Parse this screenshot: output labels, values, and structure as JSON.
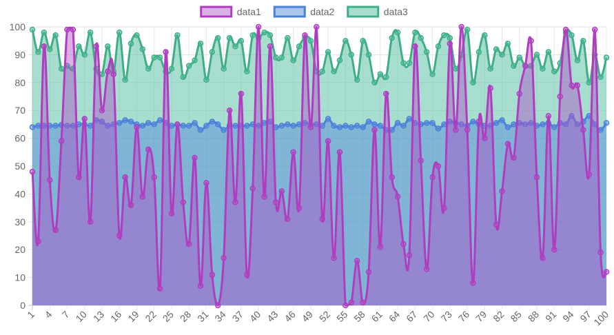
{
  "chart_data": {
    "type": "area",
    "xlabel": "",
    "ylabel": "",
    "ylim": [
      0,
      100
    ],
    "y_ticks": [
      0,
      10,
      20,
      30,
      40,
      50,
      60,
      70,
      80,
      90,
      100
    ],
    "x": [
      1,
      2,
      3,
      4,
      5,
      6,
      7,
      8,
      9,
      10,
      11,
      12,
      13,
      14,
      15,
      16,
      17,
      18,
      19,
      20,
      21,
      22,
      23,
      24,
      25,
      26,
      27,
      28,
      29,
      30,
      31,
      32,
      33,
      34,
      35,
      36,
      37,
      38,
      39,
      40,
      41,
      42,
      43,
      44,
      45,
      46,
      47,
      48,
      49,
      50,
      51,
      52,
      53,
      54,
      55,
      56,
      57,
      58,
      59,
      60,
      61,
      62,
      63,
      64,
      65,
      66,
      67,
      68,
      69,
      70,
      71,
      72,
      73,
      74,
      75,
      76,
      77,
      78,
      79,
      80,
      81,
      82,
      83,
      84,
      85,
      86,
      87,
      88,
      89,
      90,
      91,
      92,
      93,
      94,
      95,
      96,
      97,
      98,
      99,
      100
    ],
    "x_tick_labels": [
      "1",
      "4",
      "7",
      "10",
      "13",
      "16",
      "19",
      "22",
      "25",
      "28",
      "31",
      "34",
      "37",
      "40",
      "43",
      "46",
      "49",
      "52",
      "55",
      "58",
      "61",
      "64",
      "67",
      "70",
      "73",
      "76",
      "79",
      "82",
      "85",
      "88",
      "91",
      "94",
      "97",
      "100"
    ],
    "grid": true,
    "legend_position": "top",
    "series": [
      {
        "name": "data1",
        "line_color": "#b03cc0",
        "fill_color": "rgba(176,80,200,0.45)",
        "values": [
          48,
          23,
          93,
          45,
          27,
          59,
          99,
          99,
          46,
          67,
          30,
          93,
          70,
          84,
          83,
          25,
          46,
          36,
          64,
          39,
          56,
          46,
          6,
          91,
          33,
          65,
          37,
          22,
          53,
          7,
          44,
          11,
          0,
          17,
          70,
          37,
          76,
          11,
          42,
          100,
          39,
          93,
          37,
          41,
          31,
          55,
          35,
          97,
          64,
          100,
          31,
          59,
          17,
          55,
          0,
          1,
          16,
          1,
          12,
          63,
          21,
          76,
          46,
          39,
          22,
          18,
          93,
          52,
          13,
          46,
          50,
          35,
          94,
          63,
          100,
          63,
          8,
          66,
          60,
          78,
          29,
          41,
          58,
          53,
          76,
          86,
          95,
          46,
          17,
          68,
          20,
          75,
          99,
          79,
          79,
          63,
          47,
          99,
          19,
          12
        ]
      },
      {
        "name": "data2",
        "line_color": "#4a80d8",
        "fill_color": "rgba(90,140,220,0.5)",
        "values": [
          64,
          64.5,
          64.5,
          64.5,
          64.5,
          64.8,
          64.5,
          64.5,
          65,
          65,
          64.5,
          66.5,
          66,
          64.5,
          65,
          65.5,
          66.5,
          66,
          65,
          64.5,
          65.5,
          65,
          66.5,
          65.5,
          64.5,
          65,
          64.5,
          64.5,
          65.5,
          63,
          64.5,
          66,
          65,
          63,
          64.5,
          64.5,
          64.5,
          64.5,
          65,
          64.5,
          65.5,
          66,
          64,
          64.5,
          65,
          64.5,
          65,
          65.5,
          65,
          65,
          64.5,
          67,
          64.5,
          64,
          64.5,
          64,
          64.5,
          64,
          66,
          65,
          64.5,
          63,
          63,
          65.5,
          64.5,
          67,
          65.5,
          65,
          65.5,
          65.5,
          63.5,
          65,
          66,
          65.5,
          65,
          64.5,
          66,
          65,
          64.5,
          64.5,
          65.5,
          66.5,
          64,
          65,
          65.5,
          65,
          65.5,
          64.5,
          65,
          65.5,
          64,
          65.5,
          65,
          68,
          65,
          66,
          68,
          65,
          63,
          65.5
        ]
      },
      {
        "name": "data3",
        "line_color": "#3fae87",
        "fill_color": "rgba(80,190,160,0.5)",
        "values": [
          99,
          91,
          98,
          92,
          97,
          85,
          86,
          85,
          93,
          90,
          98,
          85,
          83,
          93,
          84,
          98,
          81,
          94,
          97,
          92,
          85,
          89,
          89,
          84,
          85,
          97,
          82,
          86,
          88,
          94,
          81,
          91,
          96,
          85,
          96,
          93,
          95,
          84,
          97,
          96,
          98,
          97,
          89,
          89,
          96,
          88,
          93,
          96,
          95,
          84,
          84,
          91,
          84,
          88,
          95,
          90,
          81,
          95,
          90,
          80,
          83,
          82,
          96,
          98,
          87,
          87,
          98,
          96,
          91,
          83,
          93,
          97,
          96,
          85,
          90,
          99,
          80,
          91,
          97,
          85,
          92,
          90,
          94,
          86,
          89,
          86,
          86,
          90,
          85,
          91,
          84,
          87,
          98,
          97,
          88,
          95,
          80,
          90,
          82,
          89
        ]
      }
    ]
  }
}
